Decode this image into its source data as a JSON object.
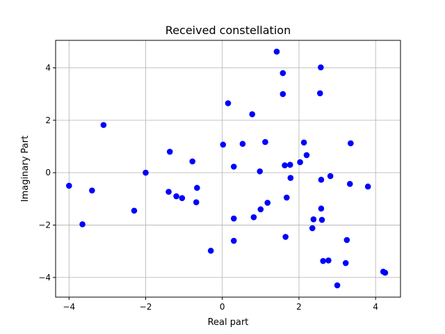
{
  "chart_data": {
    "type": "scatter",
    "title": "Received constellation",
    "xlabel": "Real part",
    "ylabel": "Imaginary Part",
    "xlim": [
      -4.35,
      4.65
    ],
    "ylim": [
      -4.75,
      5.05
    ],
    "xticks": [
      -4,
      -2,
      0,
      2,
      4
    ],
    "xtick_labels": [
      "−4",
      "−2",
      "0",
      "2",
      "4"
    ],
    "yticks": [
      -4,
      -2,
      0,
      2,
      4
    ],
    "ytick_labels": [
      "−4",
      "−2",
      "0",
      "2",
      "4"
    ],
    "grid": true,
    "marker_color": "#0000ff",
    "series": [
      {
        "points": [
          [
            -4.0,
            -0.5
          ],
          [
            -3.65,
            -1.97
          ],
          [
            -3.4,
            -0.68
          ],
          [
            -3.1,
            1.82
          ],
          [
            -2.3,
            -1.45
          ],
          [
            -2.0,
            0.0
          ],
          [
            -1.4,
            -0.73
          ],
          [
            -1.37,
            0.8
          ],
          [
            -1.2,
            -0.9
          ],
          [
            -1.05,
            -0.97
          ],
          [
            -0.78,
            0.43
          ],
          [
            -0.68,
            -1.13
          ],
          [
            -0.66,
            -0.58
          ],
          [
            -0.3,
            -2.98
          ],
          [
            0.02,
            1.07
          ],
          [
            0.15,
            2.65
          ],
          [
            0.3,
            0.23
          ],
          [
            0.3,
            -1.75
          ],
          [
            0.3,
            -2.6
          ],
          [
            0.53,
            1.1
          ],
          [
            0.78,
            2.23
          ],
          [
            0.82,
            -1.7
          ],
          [
            0.98,
            0.05
          ],
          [
            1.0,
            -1.4
          ],
          [
            1.12,
            1.17
          ],
          [
            1.18,
            -1.15
          ],
          [
            1.42,
            4.62
          ],
          [
            1.58,
            3.8
          ],
          [
            1.58,
            3.0
          ],
          [
            1.63,
            0.28
          ],
          [
            1.65,
            -2.45
          ],
          [
            1.68,
            -0.95
          ],
          [
            1.77,
            0.3
          ],
          [
            1.78,
            -0.2
          ],
          [
            2.03,
            0.4
          ],
          [
            2.13,
            1.15
          ],
          [
            2.2,
            0.67
          ],
          [
            2.35,
            -2.12
          ],
          [
            2.38,
            -1.78
          ],
          [
            2.55,
            3.03
          ],
          [
            2.57,
            4.02
          ],
          [
            2.58,
            -0.27
          ],
          [
            2.58,
            -1.37
          ],
          [
            2.6,
            -1.8
          ],
          [
            2.63,
            -3.37
          ],
          [
            2.77,
            -3.35
          ],
          [
            2.82,
            -0.13
          ],
          [
            3.0,
            -4.3
          ],
          [
            3.22,
            -3.45
          ],
          [
            3.25,
            -2.57
          ],
          [
            3.33,
            -0.43
          ],
          [
            3.35,
            1.12
          ],
          [
            3.8,
            -0.53
          ],
          [
            4.2,
            -3.78
          ],
          [
            4.25,
            -3.82
          ]
        ]
      }
    ]
  }
}
